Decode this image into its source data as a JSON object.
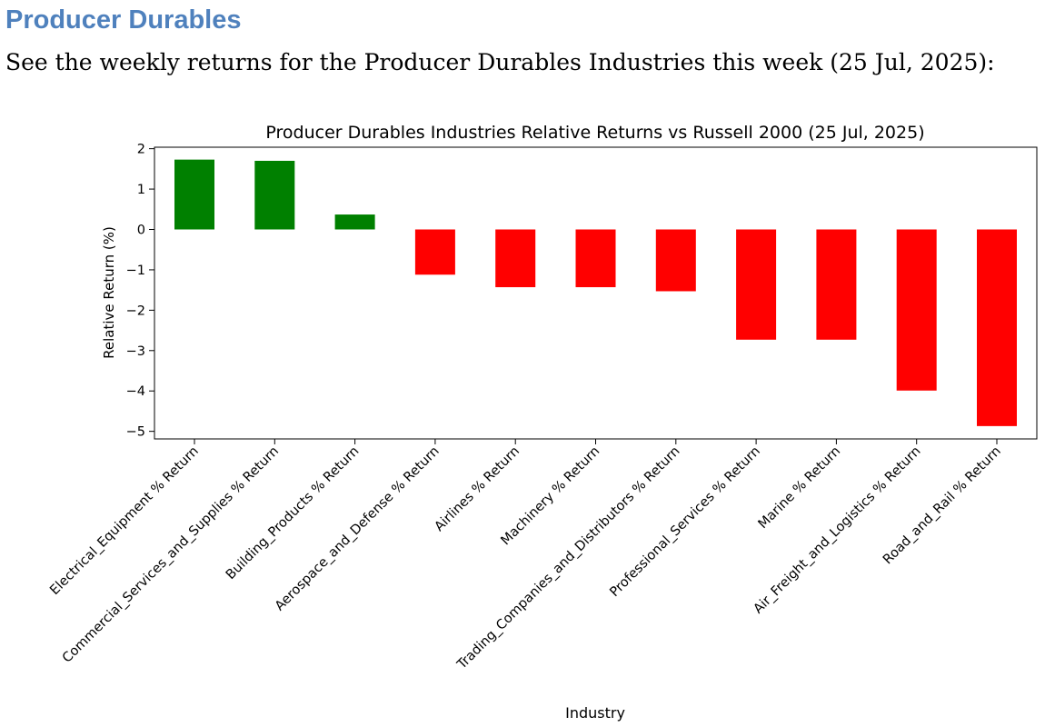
{
  "page": {
    "heading": "Producer Durables",
    "intro": "See the weekly returns for the Producer Durables Industries this week (25 Jul, 2025):"
  },
  "chart_data": {
    "type": "bar",
    "title": "Producer Durables Industries Relative Returns vs Russell 2000 (25 Jul, 2025)",
    "xlabel": "Industry",
    "ylabel": "Relative Return (%)",
    "ylim": [
      -5.2,
      2.1
    ],
    "yticks": [
      2,
      1,
      0,
      -1,
      -2,
      -3,
      -4,
      -5
    ],
    "ytick_labels": [
      "2",
      "1",
      "0",
      "−1",
      "−2",
      "−3",
      "−4",
      "−5"
    ],
    "grid": false,
    "categories": [
      "Electrical_Equipment % Return",
      "Commercial_Services_and_Supplies % Return",
      "Building_Products % Return",
      "Aerospace_and_Defense % Return",
      "Airlines % Return",
      "Machinery % Return",
      "Trading_Companies_and_Distributors % Return",
      "Professional_Services % Return",
      "Marine % Return",
      "Air_Freight_and_Logistics % Return",
      "Road_and_Rail % Return"
    ],
    "values": [
      1.73,
      1.7,
      0.37,
      -1.12,
      -1.43,
      -1.43,
      -1.53,
      -2.73,
      -2.73,
      -3.99,
      -4.87
    ],
    "colors": {
      "positive": "#008000",
      "negative": "#ff0000"
    }
  }
}
